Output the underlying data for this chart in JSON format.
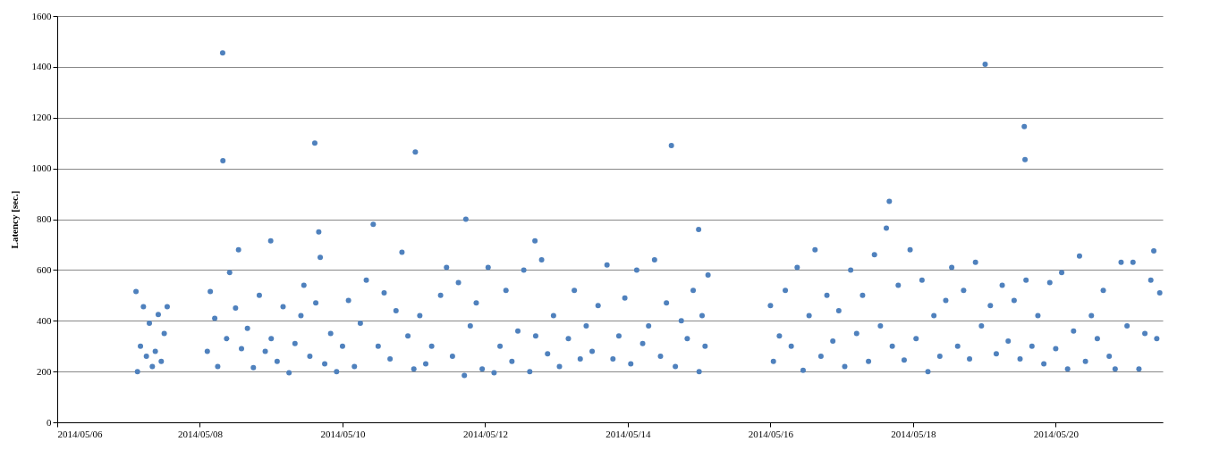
{
  "chart_data": {
    "type": "scatter",
    "ylabel": "Latency [sec.]",
    "color": "#4f81bd",
    "marker": "circle",
    "grid": "y",
    "xlim": [
      "2014-05-06",
      "2014-05-21T12:00"
    ],
    "xticks": [
      {
        "value": "2014-05-06",
        "label": "2014/05/06"
      },
      {
        "value": "2014-05-08",
        "label": "2014/05/08"
      },
      {
        "value": "2014-05-10",
        "label": "2014/05/10"
      },
      {
        "value": "2014-05-12",
        "label": "2014/05/12"
      },
      {
        "value": "2014-05-14",
        "label": "2014/05/14"
      },
      {
        "value": "2014-05-16",
        "label": "2014/05/16"
      },
      {
        "value": "2014-05-18",
        "label": "2014/05/18"
      },
      {
        "value": "2014-05-20",
        "label": "2014/05/20"
      }
    ],
    "ylim": [
      0,
      1600
    ],
    "yticks": [
      0,
      200,
      400,
      600,
      800,
      1000,
      1200,
      1400,
      1600
    ],
    "x": [
      "2014-05-07T02:30",
      "2014-05-07T03:00",
      "2014-05-07T04:00",
      "2014-05-07T05:00",
      "2014-05-07T06:00",
      "2014-05-07T07:00",
      "2014-05-07T08:00",
      "2014-05-07T09:00",
      "2014-05-07T10:00",
      "2014-05-07T11:00",
      "2014-05-07T12:00",
      "2014-05-07T13:00",
      "2014-05-08T02:30",
      "2014-05-08T03:30",
      "2014-05-08T05:00",
      "2014-05-08T06:00",
      "2014-05-08T07:40",
      "2014-05-08T07:45",
      "2014-05-08T09:00",
      "2014-05-08T10:00",
      "2014-05-08T12:00",
      "2014-05-08T13:00",
      "2014-05-08T14:00",
      "2014-05-08T16:00",
      "2014-05-08T18:00",
      "2014-05-08T20:00",
      "2014-05-08T22:00",
      "2014-05-08T23:50",
      "2014-05-09T00:00",
      "2014-05-09T02:00",
      "2014-05-09T04:00",
      "2014-05-09T06:00",
      "2014-05-09T08:00",
      "2014-05-09T10:00",
      "2014-05-09T11:00",
      "2014-05-09T13:00",
      "2014-05-09T14:40",
      "2014-05-09T15:00",
      "2014-05-09T16:00",
      "2014-05-09T16:30",
      "2014-05-09T18:00",
      "2014-05-09T20:00",
      "2014-05-09T22:00",
      "2014-05-10T00:00",
      "2014-05-10T02:00",
      "2014-05-10T04:00",
      "2014-05-10T06:00",
      "2014-05-10T08:00",
      "2014-05-10T10:20",
      "2014-05-10T12:00",
      "2014-05-10T14:00",
      "2014-05-10T16:00",
      "2014-05-10T18:00",
      "2014-05-10T20:00",
      "2014-05-10T22:00",
      "2014-05-11T00:00",
      "2014-05-11T00:30",
      "2014-05-11T02:00",
      "2014-05-11T04:00",
      "2014-05-11T06:00",
      "2014-05-11T09:00",
      "2014-05-11T11:00",
      "2014-05-11T13:00",
      "2014-05-11T15:00",
      "2014-05-11T17:00",
      "2014-05-11T17:30",
      "2014-05-11T19:00",
      "2014-05-11T21:00",
      "2014-05-11T23:00",
      "2014-05-12T01:00",
      "2014-05-12T03:00",
      "2014-05-12T05:00",
      "2014-05-12T07:00",
      "2014-05-12T09:00",
      "2014-05-12T11:00",
      "2014-05-12T13:00",
      "2014-05-12T15:00",
      "2014-05-12T16:45",
      "2014-05-12T17:00",
      "2014-05-12T19:00",
      "2014-05-12T21:00",
      "2014-05-12T23:00",
      "2014-05-13T01:00",
      "2014-05-13T04:00",
      "2014-05-13T06:00",
      "2014-05-13T08:00",
      "2014-05-13T10:00",
      "2014-05-13T12:00",
      "2014-05-13T14:00",
      "2014-05-13T17:00",
      "2014-05-13T19:00",
      "2014-05-13T21:00",
      "2014-05-13T23:00",
      "2014-05-14T01:00",
      "2014-05-14T03:00",
      "2014-05-14T05:00",
      "2014-05-14T07:00",
      "2014-05-14T09:00",
      "2014-05-14T11:00",
      "2014-05-14T13:00",
      "2014-05-14T14:40",
      "2014-05-14T16:00",
      "2014-05-14T18:00",
      "2014-05-14T20:00",
      "2014-05-14T22:00",
      "2014-05-14T23:50",
      "2014-05-15T00:00",
      "2014-05-15T01:00",
      "2014-05-15T02:00",
      "2014-05-15T03:00",
      "2014-05-16T00:00",
      "2014-05-16T01:00",
      "2014-05-16T03:00",
      "2014-05-16T05:00",
      "2014-05-16T07:00",
      "2014-05-16T09:00",
      "2014-05-16T11:00",
      "2014-05-16T13:00",
      "2014-05-16T15:00",
      "2014-05-16T17:00",
      "2014-05-16T19:00",
      "2014-05-16T21:00",
      "2014-05-16T23:00",
      "2014-05-17T01:00",
      "2014-05-17T03:00",
      "2014-05-17T05:00",
      "2014-05-17T07:00",
      "2014-05-17T09:00",
      "2014-05-17T11:00",
      "2014-05-17T13:00",
      "2014-05-17T15:00",
      "2014-05-17T16:00",
      "2014-05-17T17:00",
      "2014-05-17T19:00",
      "2014-05-17T21:00",
      "2014-05-17T23:00",
      "2014-05-18T01:00",
      "2014-05-18T03:00",
      "2014-05-18T05:00",
      "2014-05-18T07:00",
      "2014-05-18T09:00",
      "2014-05-18T11:00",
      "2014-05-18T13:00",
      "2014-05-18T15:00",
      "2014-05-18T17:00",
      "2014-05-18T19:00",
      "2014-05-18T21:00",
      "2014-05-18T23:00",
      "2014-05-19T00:15",
      "2014-05-19T02:00",
      "2014-05-19T04:00",
      "2014-05-19T06:00",
      "2014-05-19T08:00",
      "2014-05-19T10:00",
      "2014-05-19T12:00",
      "2014-05-19T13:25",
      "2014-05-19T13:40",
      "2014-05-19T14:00",
      "2014-05-19T16:00",
      "2014-05-19T18:00",
      "2014-05-19T20:00",
      "2014-05-19T22:00",
      "2014-05-20T00:00",
      "2014-05-20T02:00",
      "2014-05-20T04:00",
      "2014-05-20T06:00",
      "2014-05-20T08:00",
      "2014-05-20T10:00",
      "2014-05-20T12:00",
      "2014-05-20T14:00",
      "2014-05-20T16:00",
      "2014-05-20T18:00",
      "2014-05-20T20:00",
      "2014-05-20T22:00",
      "2014-05-21T00:00",
      "2014-05-21T02:00",
      "2014-05-21T04:00",
      "2014-05-21T06:00",
      "2014-05-21T08:00",
      "2014-05-21T09:00",
      "2014-05-21T10:00",
      "2014-05-21T11:00"
    ],
    "values": [
      515,
      200,
      300,
      455,
      260,
      390,
      220,
      280,
      425,
      240,
      350,
      455,
      280,
      515,
      410,
      220,
      1455,
      1030,
      330,
      590,
      450,
      680,
      290,
      370,
      215,
      500,
      280,
      715,
      330,
      240,
      455,
      195,
      310,
      420,
      540,
      260,
      1100,
      470,
      750,
      650,
      230,
      350,
      200,
      300,
      480,
      220,
      390,
      560,
      780,
      300,
      510,
      250,
      440,
      670,
      340,
      210,
      1065,
      420,
      230,
      300,
      500,
      610,
      260,
      550,
      185,
      800,
      380,
      470,
      210,
      610,
      195,
      300,
      520,
      240,
      360,
      600,
      200,
      715,
      340,
      640,
      270,
      420,
      220,
      330,
      520,
      250,
      380,
      280,
      460,
      620,
      250,
      340,
      490,
      230,
      600,
      310,
      380,
      640,
      260,
      470,
      1090,
      220,
      400,
      330,
      520,
      760,
      200,
      420,
      300,
      580,
      460,
      240,
      340,
      520,
      300,
      610,
      205,
      420,
      680,
      260,
      500,
      320,
      440,
      220,
      600,
      350,
      500,
      240,
      660,
      380,
      765,
      870,
      300,
      540,
      245,
      680,
      330,
      560,
      200,
      420,
      260,
      480,
      610,
      300,
      520,
      250,
      630,
      380,
      1410,
      460,
      270,
      540,
      320,
      480,
      250,
      1165,
      1035,
      560,
      300,
      420,
      230,
      550,
      290,
      590,
      210,
      360,
      655,
      240,
      420,
      330,
      520,
      260,
      210,
      630,
      380,
      630,
      210,
      350,
      560,
      675,
      330,
      510
    ]
  }
}
